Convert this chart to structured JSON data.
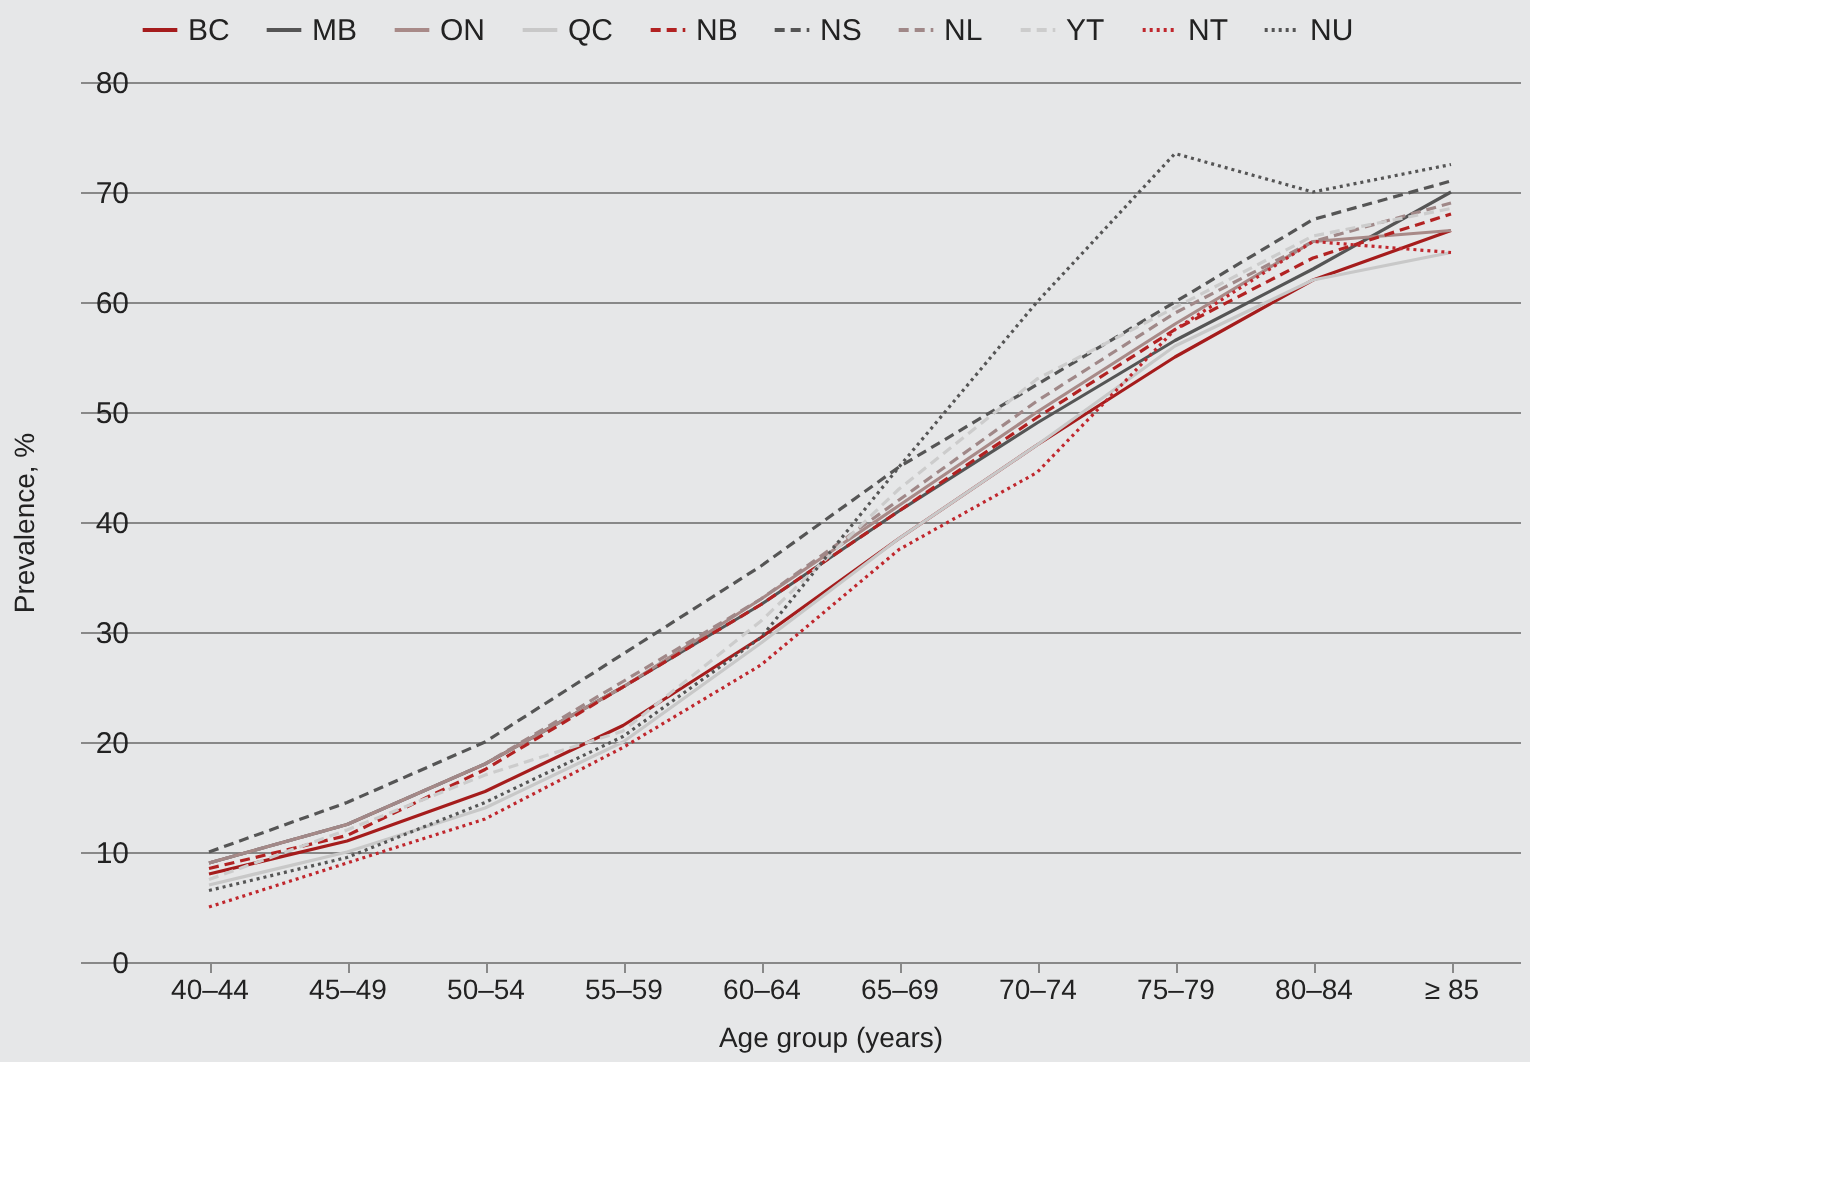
{
  "chart_data": {
    "type": "line",
    "xlabel": "Age group (years)",
    "ylabel": "Prevalence, %",
    "categories": [
      "40–44",
      "45–49",
      "50–54",
      "55–59",
      "60–64",
      "65–69",
      "70–74",
      "75–79",
      "80–84",
      "≥ 85"
    ],
    "ylim": [
      0,
      80
    ],
    "yticks": [
      0,
      10,
      20,
      30,
      40,
      50,
      60,
      70,
      80
    ],
    "grid": "y",
    "legend": "top",
    "marker": "none",
    "series": [
      {
        "name": "BC",
        "color": "#a51c1c",
        "line_style": "solid",
        "values": [
          8,
          11,
          15.5,
          21.5,
          29.5,
          38.5,
          47,
          55,
          62,
          66.5
        ]
      },
      {
        "name": "MB",
        "color": "#555555",
        "line_style": "solid",
        "values": [
          9,
          12.5,
          18,
          25,
          32.5,
          41,
          49,
          56.5,
          63,
          70
        ]
      },
      {
        "name": "ON",
        "color": "#a88a88",
        "line_style": "solid",
        "values": [
          9,
          12.5,
          18,
          25,
          33,
          41.5,
          50,
          58,
          65.5,
          66.5
        ]
      },
      {
        "name": "QC",
        "color": "#c8c8c8",
        "line_style": "solid",
        "values": [
          7,
          10,
          14,
          20,
          29,
          38.5,
          47,
          56,
          62,
          64.5
        ]
      },
      {
        "name": "NB",
        "color": "#b22222",
        "line_style": "dashed",
        "values": [
          8.5,
          11.5,
          17.5,
          25,
          32.5,
          41,
          49.5,
          57.5,
          64,
          68
        ]
      },
      {
        "name": "NS",
        "color": "#555555",
        "line_style": "dashed",
        "values": [
          10,
          14.5,
          20,
          28,
          36,
          45,
          52.5,
          60,
          67.5,
          71
        ]
      },
      {
        "name": "NL",
        "color": "#a08888",
        "line_style": "dashed",
        "values": [
          9,
          12.5,
          18,
          25.5,
          33,
          42,
          51,
          59,
          65.5,
          69
        ]
      },
      {
        "name": "YT",
        "color": "#cccccc",
        "line_style": "dashed",
        "values": [
          7.5,
          12,
          17,
          21,
          31,
          43,
          53,
          59.5,
          66,
          68.5
        ]
      },
      {
        "name": "NT",
        "color": "#c0272d",
        "line_style": "dotted",
        "values": [
          5,
          9,
          13,
          19.5,
          27,
          37.5,
          44.5,
          57.5,
          65.5,
          64.5
        ]
      },
      {
        "name": "NU",
        "color": "#555555",
        "line_style": "dotted",
        "values": [
          6.5,
          9.5,
          14.5,
          20.5,
          29.5,
          45,
          60,
          73.5,
          70,
          72.5
        ]
      }
    ]
  }
}
